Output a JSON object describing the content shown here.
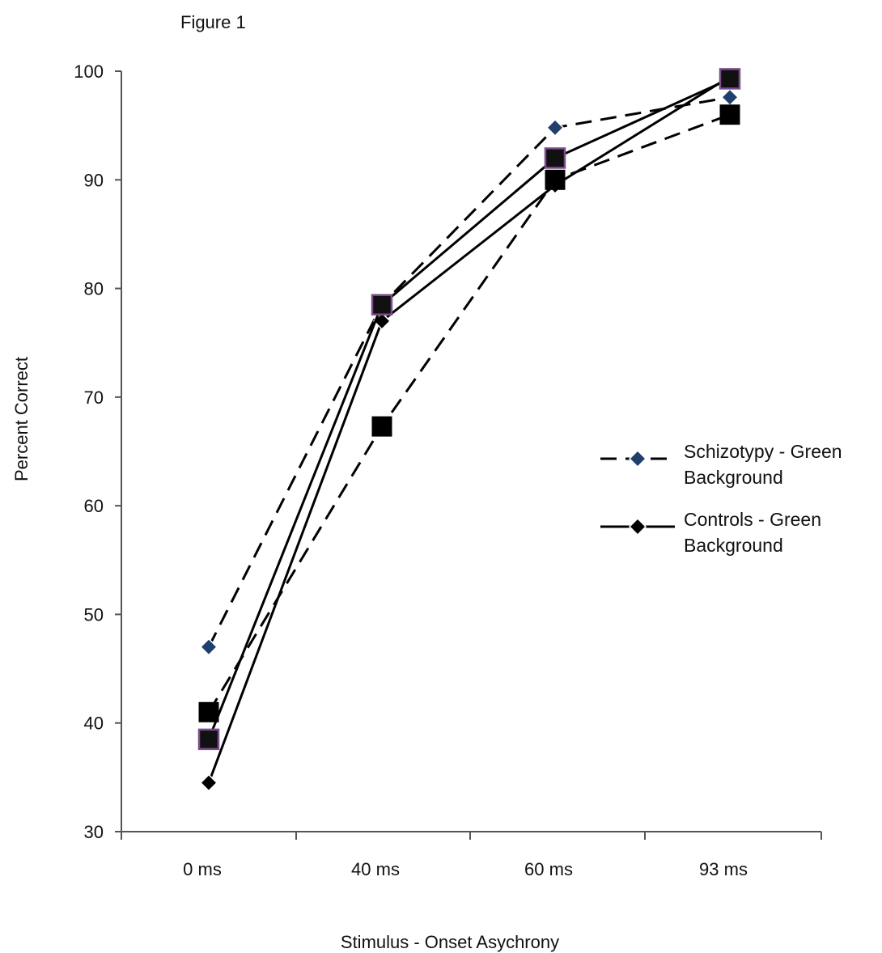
{
  "chart_data": {
    "type": "line",
    "title": "Figure 1",
    "xlabel": "Stimulus - Onset Asychrony",
    "ylabel": "Percent Correct",
    "categories": [
      "0 ms",
      "40 ms",
      "60 ms",
      "93 ms"
    ],
    "ylim": [
      30,
      100
    ],
    "yticks": [
      30,
      40,
      50,
      60,
      70,
      80,
      90,
      100
    ],
    "grid": false,
    "legend_position": "right",
    "series": [
      {
        "name": "Schizotypy - Green Background",
        "legend_lines": [
          "Schizotypy - Green",
          "Background"
        ],
        "values": [
          47,
          78.5,
          94.8,
          97.6
        ],
        "line_style": "dashed",
        "marker": "diamond",
        "marker_color": "#1f3f6e"
      },
      {
        "name": "Controls - Green Background",
        "legend_lines": [
          "Controls - Green",
          "Background"
        ],
        "values": [
          34.5,
          77,
          89.5,
          99.5
        ],
        "line_style": "solid",
        "marker": "diamond",
        "marker_color": "#000000"
      },
      {
        "values": [
          38.5,
          78.5,
          92,
          99.3
        ],
        "line_style": "solid",
        "marker": "square",
        "marker_color": "#111111",
        "marker_edge": "#7a4d8c"
      },
      {
        "values": [
          41,
          67.3,
          90,
          96
        ],
        "line_style": "dashed",
        "marker": "square",
        "marker_color": "#000000"
      }
    ]
  }
}
